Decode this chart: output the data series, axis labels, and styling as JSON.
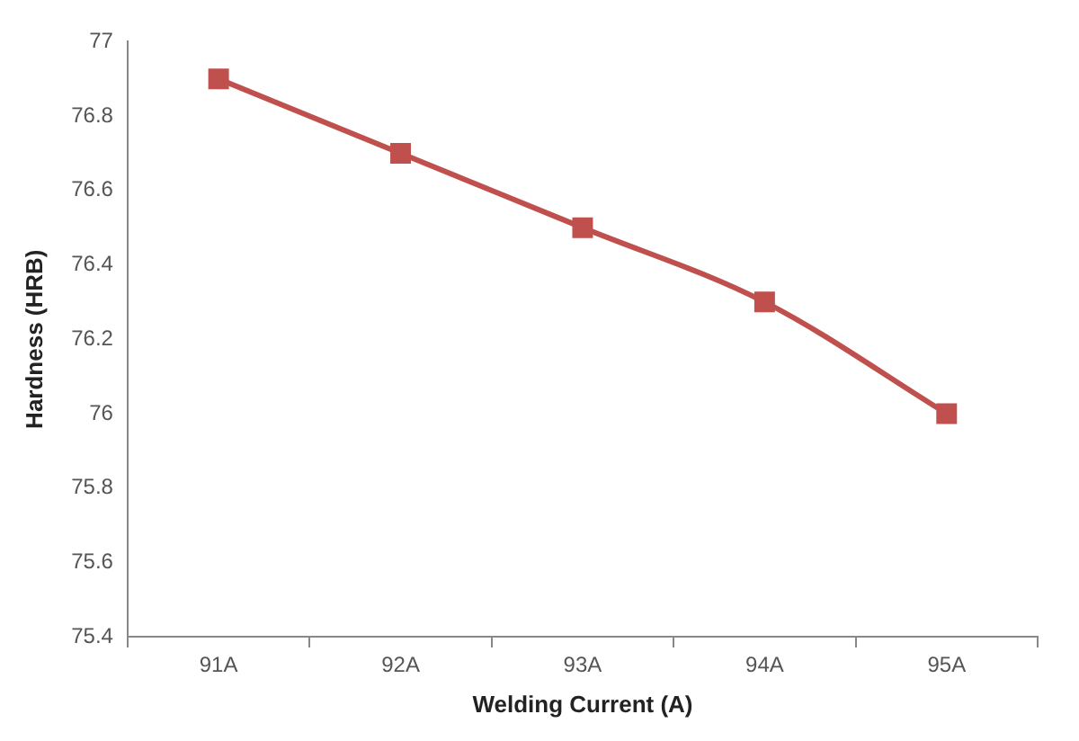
{
  "chart_data": {
    "type": "line",
    "xlabel": "Welding Current (A)",
    "ylabel": "Hardness (HRB)",
    "categories": [
      "91A",
      "92A",
      "93A",
      "94A",
      "95A"
    ],
    "series": [
      {
        "color": "#c0504d",
        "values": [
          76.9,
          76.7,
          76.5,
          76.3,
          76.0
        ]
      }
    ],
    "ylim": [
      75.4,
      77
    ],
    "yticks": [
      75.4,
      75.6,
      75.8,
      76,
      76.2,
      76.4,
      76.6,
      76.8,
      77
    ],
    "grid": false,
    "legend": false,
    "marker": "square",
    "line_style": "solid"
  }
}
